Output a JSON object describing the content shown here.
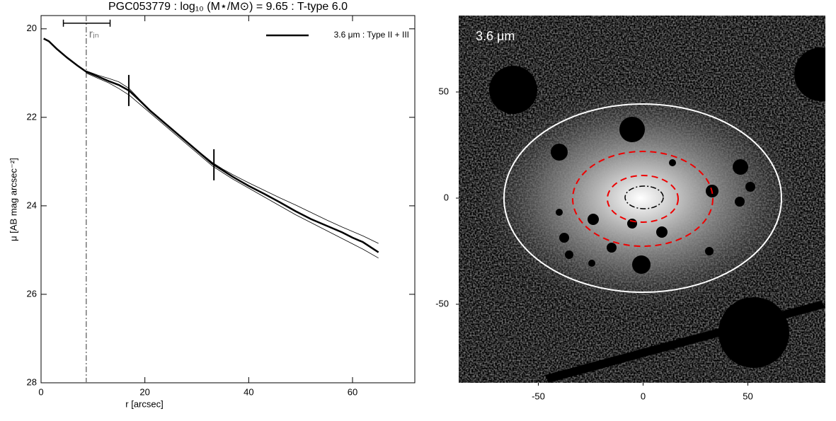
{
  "chart_data": [
    {
      "type": "line",
      "title": "PGC053779 : log₁₀ (M⋆/M⊙) = 9.65 : T-type 6.0",
      "x_label": "r [arcsec]",
      "y_label": "μ [AB mag arcsec⁻²]",
      "xlim": [
        0,
        72
      ],
      "xticks": [
        0,
        20,
        40,
        60
      ],
      "ylim": [
        28,
        19.7
      ],
      "yticks": [
        20,
        22,
        24,
        26,
        28
      ],
      "x": [
        0.5,
        1.5,
        3,
        5,
        7,
        8.7,
        11,
        13,
        15,
        17,
        19,
        21,
        23,
        25,
        27,
        29,
        31,
        33,
        35,
        37,
        40,
        43,
        46,
        49,
        52,
        55,
        58,
        60,
        62,
        65
      ],
      "series": [
        {
          "name": "3.6 μm : Type II + III",
          "color": "#000000",
          "width": 2.5,
          "values": [
            20.22,
            20.28,
            20.45,
            20.65,
            20.83,
            20.97,
            21.08,
            21.18,
            21.27,
            21.4,
            21.62,
            21.85,
            22.05,
            22.25,
            22.45,
            22.65,
            22.85,
            23.05,
            23.2,
            23.35,
            23.55,
            23.73,
            23.92,
            24.12,
            24.3,
            24.45,
            24.6,
            24.72,
            24.82,
            25.05
          ]
        },
        {
          "color": "#000000",
          "width": 0.8,
          "values": [
            null,
            null,
            null,
            null,
            null,
            20.95,
            21.05,
            21.12,
            21.2,
            21.35,
            21.6,
            21.83,
            22.03,
            22.23,
            22.43,
            22.63,
            22.83,
            23.02,
            23.17,
            23.3,
            23.48,
            23.65,
            23.82,
            23.98,
            24.15,
            24.32,
            24.48,
            24.58,
            24.68,
            24.85
          ]
        },
        {
          "color": "#000000",
          "width": 0.8,
          "values": [
            null,
            null,
            null,
            null,
            null,
            21.0,
            21.12,
            21.22,
            21.35,
            21.5,
            21.7,
            21.9,
            22.1,
            22.3,
            22.5,
            22.7,
            22.9,
            23.1,
            23.25,
            23.4,
            23.6,
            23.8,
            24.0,
            24.2,
            24.38,
            24.56,
            24.74,
            24.86,
            24.98,
            25.18
          ]
        }
      ],
      "r_in": 8.7,
      "r_in_label": "rᵢₙ",
      "r_in_range": [
        4.3,
        13.3
      ],
      "breaks": [
        16.9,
        33.3
      ],
      "legend": "upper right"
    },
    {
      "type": "image",
      "label": "3.6 μm",
      "xlim": [
        -88,
        87
      ],
      "xticks": [
        -50,
        0,
        50
      ],
      "ylim": [
        -87,
        86
      ],
      "yticks": [
        -50,
        0,
        50
      ]
    }
  ]
}
